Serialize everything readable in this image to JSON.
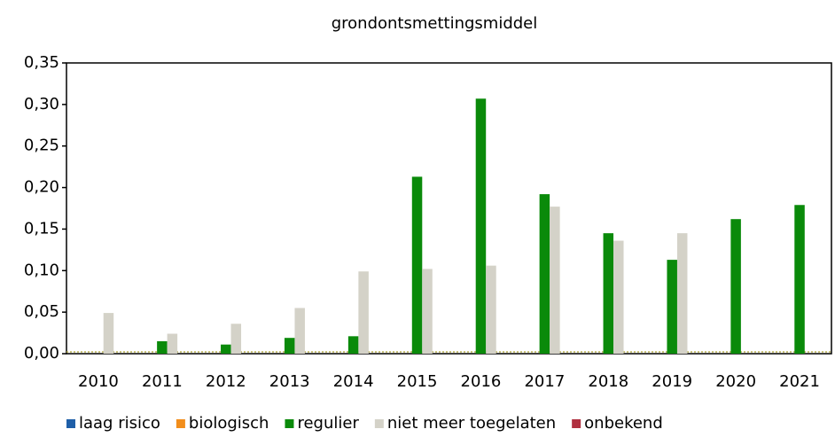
{
  "chart_data": {
    "type": "bar",
    "title": "grondontsmettingsmiddel",
    "categories": [
      "2010",
      "2011",
      "2012",
      "2013",
      "2014",
      "2015",
      "2016",
      "2017",
      "2018",
      "2019",
      "2020",
      "2021"
    ],
    "series": [
      {
        "name": "laag risico",
        "color": "#1f5fa8",
        "values": [
          0,
          0,
          0,
          0,
          0,
          0,
          0,
          0,
          0,
          0,
          0,
          0
        ]
      },
      {
        "name": "biologisch",
        "color": "#f28e1c",
        "values": [
          0,
          0,
          0,
          0,
          0,
          0,
          0,
          0,
          0,
          0,
          0,
          0
        ]
      },
      {
        "name": "regulier",
        "color": "#0a8a0a",
        "values": [
          0,
          0.015,
          0.011,
          0.019,
          0.021,
          0.213,
          0.307,
          0.192,
          0.145,
          0.113,
          0.162,
          0.179
        ]
      },
      {
        "name": "niet meer toegelaten",
        "color": "#d4d2c8",
        "values": [
          0.049,
          0.024,
          0.036,
          0.055,
          0.099,
          0.102,
          0.106,
          0.177,
          0.136,
          0.145,
          0,
          0
        ]
      },
      {
        "name": "onbekend",
        "color": "#b03040",
        "values": [
          0,
          0,
          0,
          0,
          0,
          0,
          0,
          0,
          0,
          0,
          0,
          0
        ]
      }
    ],
    "ylim": [
      0,
      0.35
    ],
    "yticks": [
      {
        "value": 0,
        "label": "0,00"
      },
      {
        "value": 0.05,
        "label": "0,05"
      },
      {
        "value": 0.1,
        "label": "0,10"
      },
      {
        "value": 0.15,
        "label": "0,15"
      },
      {
        "value": 0.2,
        "label": "0,20"
      },
      {
        "value": 0.25,
        "label": "0,25"
      },
      {
        "value": 0.3,
        "label": "0,30"
      },
      {
        "value": 0.35,
        "label": "0,35"
      }
    ],
    "legend": "bottom"
  }
}
